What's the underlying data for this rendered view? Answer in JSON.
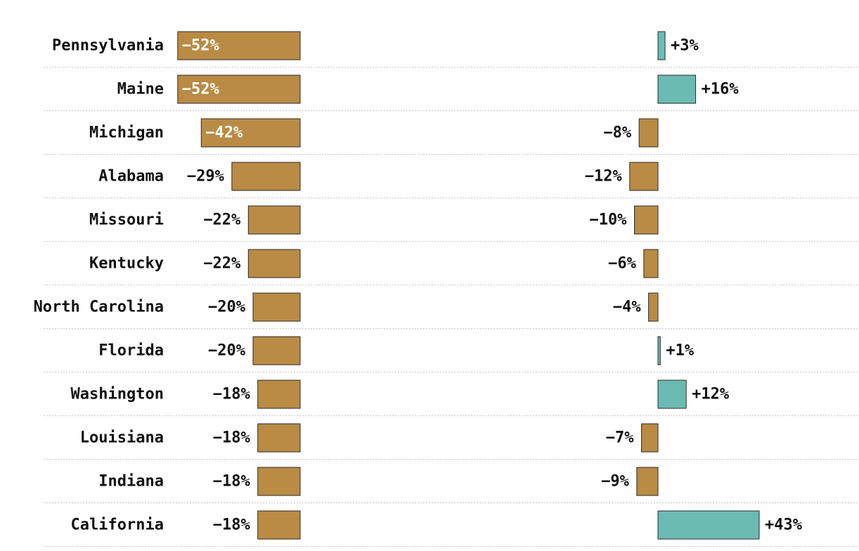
{
  "chart_data": {
    "type": "bar",
    "orientation": "horizontal",
    "categories": [
      "Pennsylvania",
      "Maine",
      "Michigan",
      "Alabama",
      "Missouri",
      "Kentucky",
      "North Carolina",
      "Florida",
      "Washington",
      "Louisiana",
      "Indiana",
      "California"
    ],
    "series": [
      {
        "values": [
          -52,
          -52,
          -42,
          -29,
          -22,
          -22,
          -20,
          -20,
          -18,
          -18,
          -18,
          -18
        ],
        "labels": [
          "−52%",
          "−52%",
          "−42%",
          "−29%",
          "−22%",
          "−22%",
          "−20%",
          "−20%",
          "−18%",
          "−18%",
          "−18%",
          "−18%"
        ]
      },
      {
        "values": [
          3,
          16,
          -8,
          -12,
          -10,
          -6,
          -4,
          1,
          12,
          -7,
          -9,
          43
        ],
        "labels": [
          "+3%",
          "+16%",
          "−8%",
          "−12%",
          "−10%",
          "−6%",
          "−4%",
          "+1%",
          "+12%",
          "−7%",
          "−9%",
          "+43%"
        ]
      }
    ],
    "grid": false,
    "legend": "none"
  },
  "colors": {
    "negative": "#b98b44",
    "positive": "#6bbbb3",
    "text": "#111111",
    "inner_text": "#ffffff"
  }
}
